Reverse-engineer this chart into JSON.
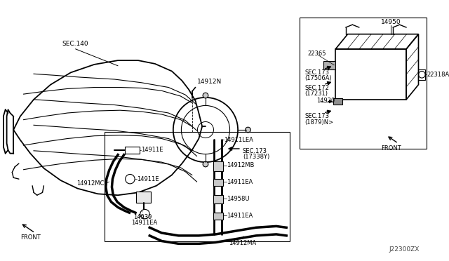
{
  "bg_color": "#ffffff",
  "lc": "#000000",
  "diagram_id": "J22300ZX",
  "labels": {
    "sec140": "SEC.140",
    "14912N": "14912N",
    "14911E_a": "14911E",
    "14912MC": "14912MC",
    "14911E_b": "14911E",
    "14939": "14939",
    "14911EA_a": "14911EA",
    "14911LEA": "14911LEA",
    "sec173_17338Y": "SEC.173\n(17338Y)",
    "14912MB": "14912MB",
    "14911EA_b": "14911EA",
    "14958U": "14958U",
    "14911EA_c": "14911EA",
    "14912MA": "14912MA",
    "FRONT_L": "FRONT",
    "22365": "22365",
    "14950": "14950",
    "sec173_17506A": "SEC.173\n(17506A)",
    "sec172_17231": "SEC.172\n(17231)",
    "14920": "14920",
    "22318A": "22318A",
    "sec173_1879N": "SEC.173\n(1879)N>",
    "FRONT_R": "FRONT"
  }
}
